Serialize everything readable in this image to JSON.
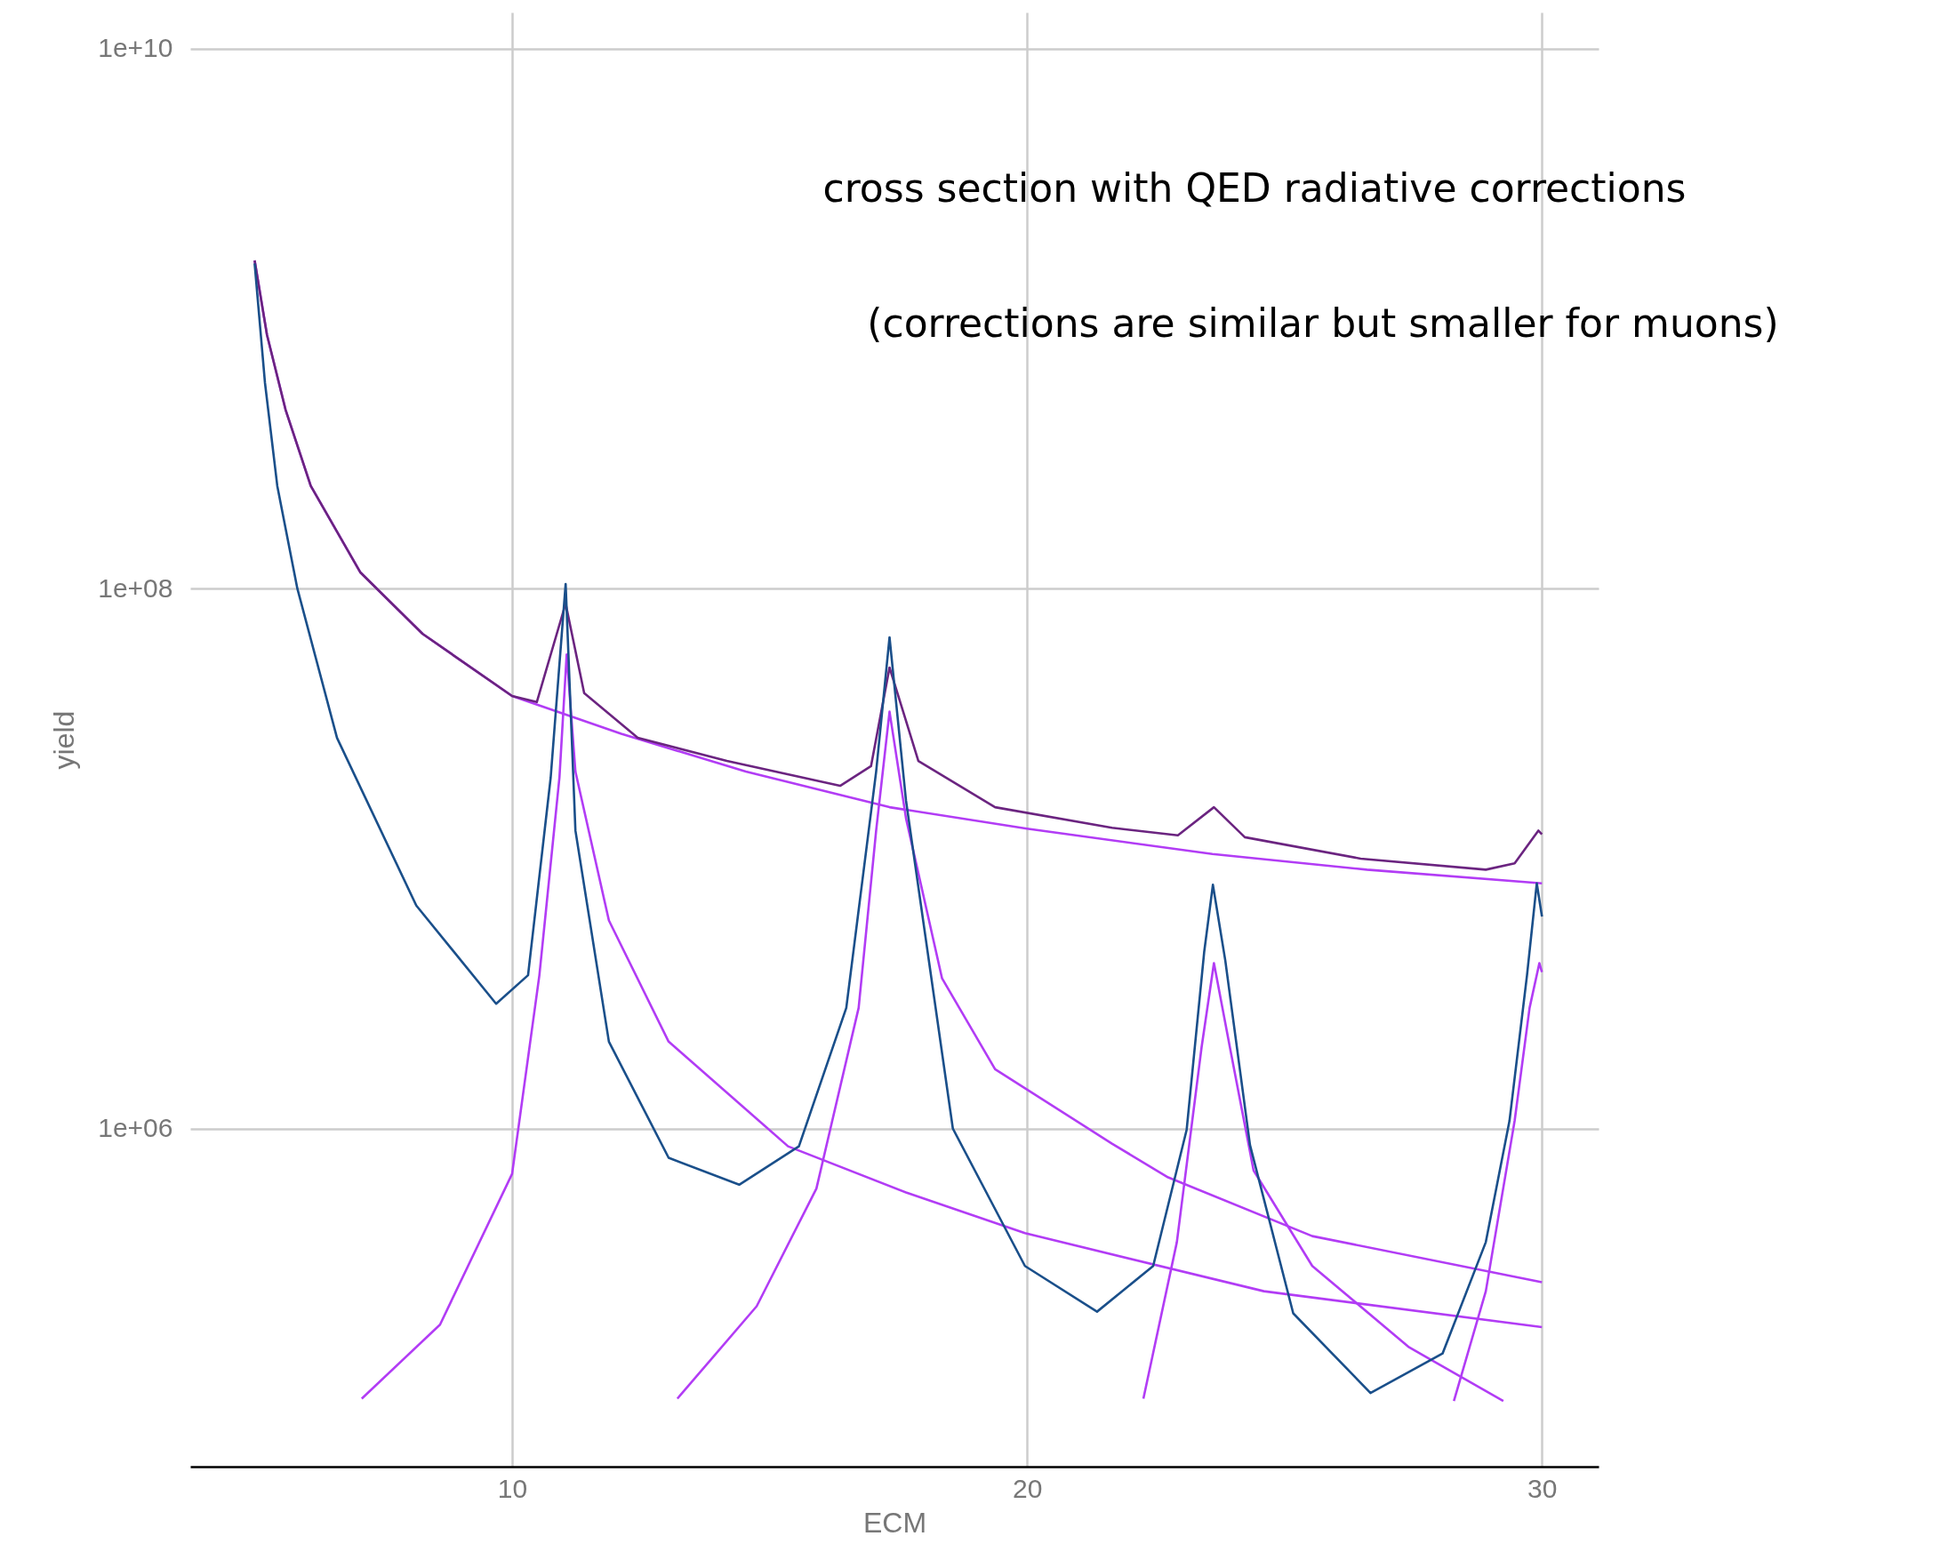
{
  "chart_data": {
    "type": "line",
    "xlabel": "ECM",
    "ylabel": "yield",
    "log": true,
    "grid": true,
    "xlim": [
      3.75,
      31.1
    ],
    "xticks": [
      10,
      20,
      30
    ],
    "ylim": [
      56000,
      13600000000
    ],
    "yticks": [
      {
        "value": 1000000,
        "label": "1e+06"
      },
      {
        "value": 100000000,
        "label": "1e+08"
      },
      {
        "value": 10000000000,
        "label": "1e+10"
      }
    ],
    "annotations": [
      "cross section with QED radiative corrections",
      "(corrections are similar but smaller for muons)"
    ],
    "series": [
      {
        "color": "#b23cf5",
        "x": [
          5.0,
          5.24,
          5.6,
          6.09,
          7.05,
          8.26,
          10,
          12.12,
          14.54,
          17.33,
          20,
          23.6,
          26.6,
          30
        ],
        "values": [
          1640000000,
          870000000,
          460000000,
          240000000,
          115000000,
          68000000,
          40000000,
          29000000,
          21000000,
          15500000,
          12900000,
          10400000,
          9100000,
          8100000
        ]
      },
      {
        "color": "#b23cf5",
        "x": [
          7.08,
          8.6,
          10,
          10.53,
          10.92,
          11.06,
          11.23,
          11.88,
          13.04,
          15.36,
          17.65,
          19.96,
          24.6,
          30
        ],
        "values": [
          100000,
          188000,
          680000,
          3700000,
          20000000,
          57000000,
          21000000,
          5900000,
          2100000,
          860000,
          580000,
          410000,
          250000,
          184000
        ]
      },
      {
        "color": "#b23cf5",
        "x": [
          13.21,
          14.75,
          15.91,
          16.73,
          17.07,
          17.33,
          17.65,
          18.35,
          19.38,
          21.65,
          22.74,
          25.54,
          30
        ],
        "values": [
          100000,
          220000,
          600000,
          2800000,
          12700000,
          35000000,
          14100000,
          3600000,
          1660000,
          880000,
          660000,
          400000,
          270000
        ]
      },
      {
        "color": "#b23cf5",
        "x": [
          22.26,
          22.91,
          23.39,
          23.63,
          23.94,
          24.4,
          25.54,
          27.42,
          29.25
        ],
        "values": [
          100000,
          380000,
          2000000,
          4100000,
          2000000,
          700000,
          310000,
          155000,
          98000
        ]
      },
      {
        "color": "#b23cf5",
        "x": [
          28.29,
          28.91,
          29.47,
          29.76,
          29.95,
          30.0
        ],
        "values": [
          98000,
          250000,
          1070000,
          2800000,
          4100000,
          3800000
        ]
      },
      {
        "color": "#6b2480",
        "x": [
          5.0,
          5.24,
          5.6,
          6.09,
          7.05,
          8.26,
          10,
          10.48,
          11.04,
          11.4,
          12.44,
          14.17,
          16.37,
          16.97,
          17.33,
          17.89,
          19.38,
          21.65,
          22.93,
          23.63,
          24.23,
          26.48,
          28.91,
          29.47,
          29.93,
          30.0
        ],
        "values": [
          1640000000,
          870000000,
          460000000,
          240000000,
          115000000,
          68000000,
          40000000,
          38000000,
          88000000,
          41000000,
          28000000,
          23000000,
          18600000,
          22000000,
          51000000,
          23000000,
          15500000,
          13000000,
          12200000,
          15500000,
          12000000,
          10000000,
          9100000,
          9600000,
          12700000,
          12300000
        ]
      },
      {
        "color": "#1a4f8a",
        "x": [
          5.0,
          5.2,
          5.44,
          5.83,
          6.6,
          8.14,
          9.69,
          10.31,
          10.75,
          11.04,
          11.23,
          11.88,
          13.04,
          14.41,
          15.57,
          16.49,
          17.07,
          17.33,
          17.65,
          18.56,
          19.96,
          21.36,
          22.45,
          23.1,
          23.44,
          23.61,
          23.85,
          24.33,
          25.17,
          26.67,
          28.07,
          28.91,
          29.37,
          29.71,
          29.9,
          30.0
        ],
        "values": [
          1600000000,
          580000000,
          240000000,
          100000000,
          28000000,
          6700000,
          2900000,
          3700000,
          20000000,
          104000000,
          12700000,
          2100000,
          780000,
          620000,
          860000,
          2800000,
          21000000,
          66000000,
          16400000,
          1000000,
          310000,
          210000,
          310000,
          990000,
          4500000,
          8000000,
          4200000,
          870000,
          207000,
          105000,
          147000,
          380000,
          1070000,
          3700000,
          8100000,
          6100000
        ]
      }
    ]
  }
}
